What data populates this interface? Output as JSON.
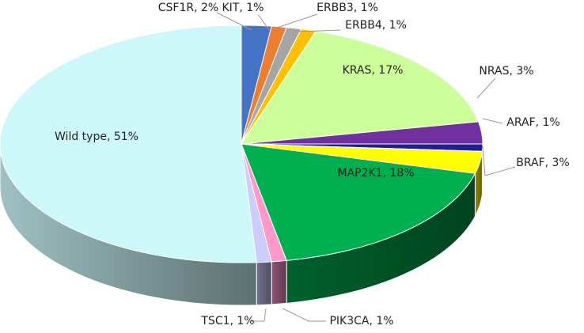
{
  "chart_data": {
    "type": "pie",
    "style": "3d",
    "title": "",
    "slices": [
      {
        "name": "CSF1R",
        "value": 2,
        "label": "CSF1R, 2%",
        "color": "#4472c4"
      },
      {
        "name": "KIT",
        "value": 1,
        "label": "KIT, 1%",
        "color": "#ed7d31"
      },
      {
        "name": "ERBB3",
        "value": 1,
        "label": "ERBB3, 1%",
        "color": "#a5a5a5"
      },
      {
        "name": "ERBB4",
        "value": 1,
        "label": "ERBB4, 1%",
        "color": "#ffc000"
      },
      {
        "name": "KRAS",
        "value": 17,
        "label": "KRAS, 17%",
        "color": "#ccff99"
      },
      {
        "name": "NRAS",
        "value": 3,
        "label": "NRAS, 3%",
        "color": "#7030a0"
      },
      {
        "name": "ARAF",
        "value": 1,
        "label": "ARAF, 1%",
        "color": "#1f1f8f"
      },
      {
        "name": "BRAF",
        "value": 3,
        "label": "BRAF, 3%",
        "color": "#ffff00"
      },
      {
        "name": "MAP2K1",
        "value": 18,
        "label": "MAP2K1, 18%",
        "color": "#00b050"
      },
      {
        "name": "PIK3CA",
        "value": 1,
        "label": "PIK3CA, 1%",
        "color": "#ff99cc"
      },
      {
        "name": "TSC1",
        "value": 1,
        "label": "TSC1, 1%",
        "color": "#ccccff"
      },
      {
        "name": "Wild type",
        "value": 51,
        "label": "Wild type, 51%",
        "color": "#ccf8fa"
      }
    ]
  }
}
